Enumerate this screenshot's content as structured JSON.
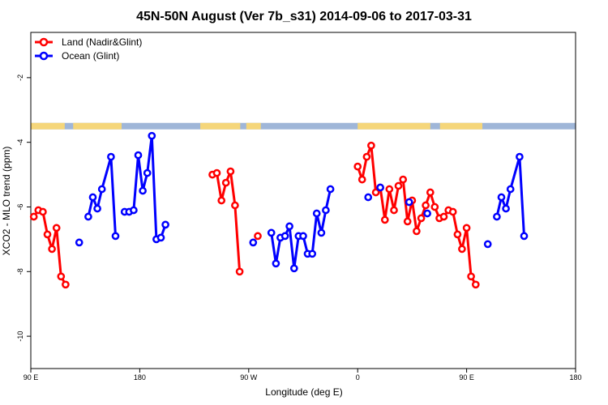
{
  "chart_data": {
    "type": "line",
    "title": "45N-50N August (Ver 7b_s31)   2014-09-06 to 2017-03-31",
    "xlabel": "Longitude (deg E)",
    "ylabel": "XCO2 - MLO trend (ppm)",
    "xlim": [
      90,
      450
    ],
    "ylim": [
      -11,
      -0.6
    ],
    "x_ticks": [
      {
        "value": 90,
        "label": "90 E"
      },
      {
        "value": 180,
        "label": "180"
      },
      {
        "value": 270,
        "label": "90 W"
      },
      {
        "value": 360,
        "label": "0"
      },
      {
        "value": 450,
        "label": "90 E"
      },
      {
        "value": 540,
        "label": "180"
      }
    ],
    "y_ticks": [
      {
        "value": -2,
        "label": "-2"
      },
      {
        "value": -4,
        "label": "-4"
      },
      {
        "value": -6,
        "label": "-6"
      },
      {
        "value": -8,
        "label": "-8"
      },
      {
        "value": -10,
        "label": "-10"
      }
    ],
    "grid": false,
    "legend_position": "top-left",
    "colors": {
      "land": "#ff0000",
      "ocean": "#0000ff",
      "land_mask": "#f5d67a",
      "ocean_mask": "#9fb6d8"
    },
    "series": [
      {
        "name": "Land (Nadir&Glint)",
        "color": "#ff0000",
        "segments": [
          [
            [
              92.5,
              -6.3
            ],
            [
              96.2,
              -6.1
            ],
            [
              100,
              -6.15
            ],
            [
              103.7,
              -6.85
            ],
            [
              107.5,
              -7.3
            ],
            [
              111.2,
              -6.65
            ],
            [
              115,
              -8.15
            ],
            [
              118.7,
              -8.4
            ]
          ],
          [
            [
              240,
              -5.0
            ],
            [
              243.7,
              -4.95
            ],
            [
              247.5,
              -5.8
            ],
            [
              251.2,
              -5.25
            ],
            [
              255,
              -4.9
            ],
            [
              258.7,
              -5.95
            ],
            [
              262.5,
              -8.0
            ]
          ],
          [
            [
              277.5,
              -6.9
            ]
          ],
          [
            [
              360,
              -4.75
            ],
            [
              363.7,
              -5.15
            ],
            [
              367.5,
              -4.45
            ],
            [
              371.2,
              -4.1
            ],
            [
              375,
              -5.55
            ],
            [
              378.7,
              -5.4
            ],
            [
              382.5,
              -6.4
            ],
            [
              386.2,
              -5.45
            ],
            [
              390,
              -6.1
            ],
            [
              393.7,
              -5.35
            ],
            [
              397.5,
              -5.15
            ],
            [
              401.2,
              -6.45
            ],
            [
              405,
              -5.8
            ],
            [
              408.7,
              -6.75
            ],
            [
              412.5,
              -6.35
            ],
            [
              416.2,
              -5.95
            ],
            [
              420,
              -5.55
            ],
            [
              423.7,
              -6.0
            ],
            [
              427.5,
              -6.35
            ],
            [
              431.2,
              -6.3
            ],
            [
              435,
              -6.1
            ],
            [
              438.7,
              -6.15
            ],
            [
              442.5,
              -6.85
            ],
            [
              446.2,
              -7.3
            ],
            [
              450,
              -6.65
            ],
            [
              453.7,
              -8.15
            ],
            [
              457.5,
              -8.4
            ]
          ]
        ]
      },
      {
        "name": "Ocean (Glint)",
        "color": "#0000ff",
        "segments": [
          [
            [
              130,
              -7.1
            ]
          ],
          [
            [
              137.5,
              -6.3
            ],
            [
              141.2,
              -5.7
            ],
            [
              145,
              -6.05
            ],
            [
              148.7,
              -5.45
            ],
            [
              156.2,
              -4.45
            ],
            [
              160,
              -6.9
            ]
          ],
          [
            [
              167.5,
              -6.15
            ],
            [
              171.2,
              -6.15
            ],
            [
              175,
              -6.1
            ],
            [
              178.7,
              -4.4
            ],
            [
              182.5,
              -5.5
            ],
            [
              186.2,
              -4.95
            ],
            [
              190,
              -3.8
            ],
            [
              193.7,
              -7.0
            ],
            [
              197.5,
              -6.95
            ],
            [
              201.2,
              -6.55
            ]
          ],
          [
            [
              273.7,
              -7.1
            ]
          ],
          [
            [
              288.7,
              -6.8
            ],
            [
              292.5,
              -7.75
            ],
            [
              296.2,
              -6.95
            ],
            [
              300,
              -6.9
            ],
            [
              303.7,
              -6.6
            ],
            [
              307.5,
              -7.9
            ],
            [
              311.2,
              -6.9
            ],
            [
              315,
              -6.9
            ],
            [
              318.7,
              -7.45
            ],
            [
              322.5,
              -7.45
            ],
            [
              326.2,
              -6.2
            ],
            [
              330,
              -6.8
            ],
            [
              333.7,
              -6.1
            ],
            [
              337.5,
              -5.45
            ]
          ],
          [
            [
              368.7,
              -5.7
            ]
          ],
          [
            [
              378.7,
              -5.4
            ]
          ],
          [
            [
              402.5,
              -5.85
            ]
          ],
          [
            [
              417.5,
              -6.2
            ]
          ],
          [
            [
              467.5,
              -7.15
            ]
          ],
          [
            [
              475,
              -6.3
            ],
            [
              478.7,
              -5.7
            ],
            [
              482.5,
              -6.05
            ],
            [
              486.2,
              -5.45
            ],
            [
              493.7,
              -4.45
            ],
            [
              497.5,
              -6.9
            ]
          ]
        ]
      }
    ],
    "land_mask_bands": [
      [
        90,
        118
      ],
      [
        125,
        165
      ],
      [
        230,
        263
      ],
      [
        268,
        280
      ],
      [
        360,
        420
      ],
      [
        428,
        463
      ]
    ]
  }
}
